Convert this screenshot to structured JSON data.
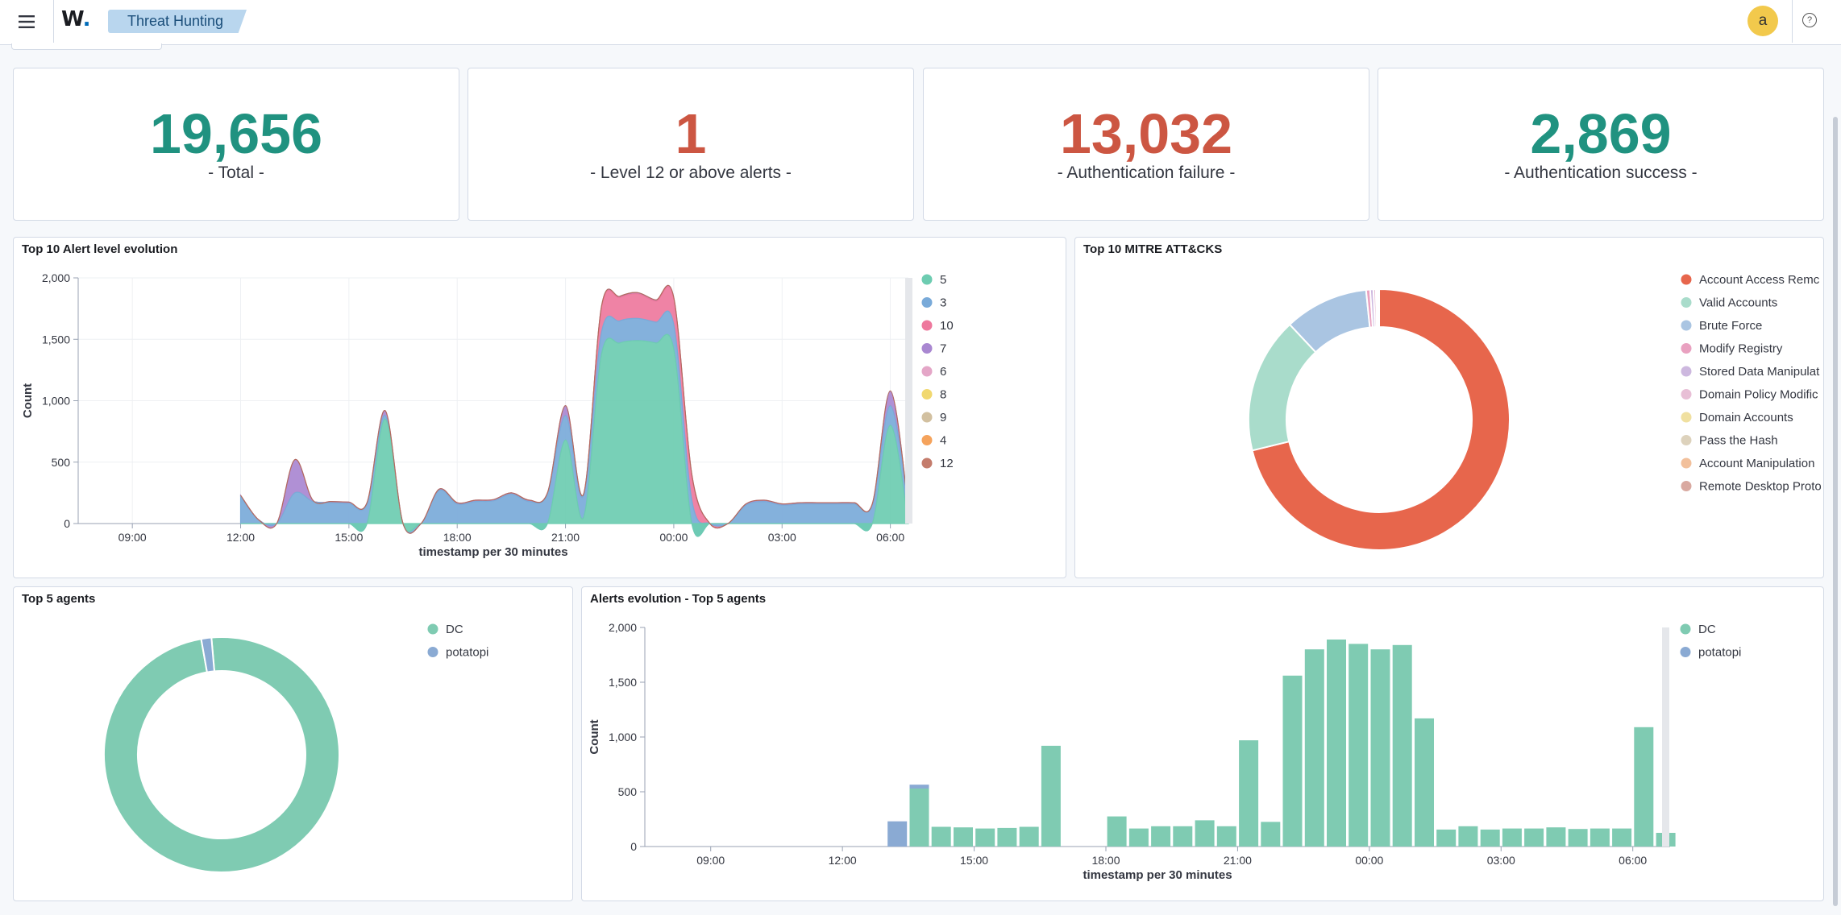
{
  "header": {
    "logo_text": "W",
    "logo_dot": ".",
    "breadcrumb": "Threat Hunting",
    "avatar_initial": "a",
    "help_glyph": "?"
  },
  "metrics": [
    {
      "value": "19,656",
      "label": "- Total -",
      "color": "#209280"
    },
    {
      "value": "1",
      "label": "- Level 12 or above alerts -",
      "color": "#cc5642"
    },
    {
      "value": "13,032",
      "label": "- Authentication failure -",
      "color": "#cc5642"
    },
    {
      "value": "2,869",
      "label": "- Authentication success -",
      "color": "#209280"
    }
  ],
  "panels": {
    "alert_level": "Top 10 Alert level evolution",
    "mitre": "Top 10 MITRE ATT&CKS",
    "agents": "Top 5 agents",
    "agents_evolution": "Alerts evolution - Top 5 agents"
  },
  "chart_data": [
    {
      "type": "area",
      "title": "Top 10 Alert level evolution",
      "xlabel": "timestamp per 30 minutes",
      "ylabel": "Count",
      "ylim": [
        0,
        2000
      ],
      "yticks": [
        "0",
        "500",
        "1,000",
        "1,500",
        "2,000"
      ],
      "xticks": [
        "09:00",
        "12:00",
        "15:00",
        "18:00",
        "21:00",
        "00:00",
        "03:00",
        "06:00"
      ],
      "x": [
        "07:30",
        "08:00",
        "08:30",
        "09:00",
        "09:30",
        "10:00",
        "10:30",
        "11:00",
        "11:30",
        "12:00",
        "12:30",
        "13:00",
        "13:30",
        "14:00",
        "14:30",
        "15:00",
        "15:30",
        "16:00",
        "16:30",
        "17:00",
        "17:30",
        "18:00",
        "18:30",
        "19:00",
        "19:30",
        "20:00",
        "20:30",
        "21:00",
        "21:30",
        "22:00",
        "22:30",
        "23:00",
        "23:30",
        "00:00",
        "00:30",
        "01:00",
        "01:30",
        "02:00",
        "02:30",
        "03:00",
        "03:30",
        "04:00",
        "04:30",
        "05:00",
        "05:30",
        "06:00",
        "06:30"
      ],
      "legend_position": "right",
      "series": [
        {
          "name": "5",
          "color": "#6dccb1",
          "values": [
            0,
            0,
            0,
            0,
            0,
            0,
            0,
            0,
            0,
            0,
            0,
            0,
            0,
            0,
            0,
            0,
            0,
            850,
            0,
            0,
            0,
            0,
            0,
            0,
            0,
            0,
            0,
            680,
            50,
            1380,
            1470,
            1490,
            1470,
            1420,
            0,
            0,
            0,
            0,
            0,
            0,
            0,
            0,
            0,
            0,
            0,
            800,
            0
          ]
        },
        {
          "name": "3",
          "color": "#79aad9",
          "values": [
            0,
            0,
            0,
            0,
            0,
            0,
            0,
            0,
            0,
            220,
            30,
            0,
            250,
            180,
            170,
            165,
            160,
            30,
            0,
            0,
            270,
            160,
            180,
            185,
            240,
            180,
            240,
            200,
            180,
            180,
            180,
            180,
            170,
            200,
            190,
            0,
            0,
            150,
            180,
            150,
            160,
            160,
            160,
            160,
            150,
            160,
            120
          ]
        },
        {
          "name": "10",
          "color": "#ee789d",
          "values": [
            0,
            0,
            0,
            0,
            0,
            0,
            0,
            0,
            0,
            0,
            0,
            0,
            0,
            0,
            0,
            0,
            0,
            0,
            0,
            0,
            0,
            0,
            0,
            0,
            0,
            0,
            0,
            0,
            0,
            200,
            190,
            200,
            170,
            210,
            200,
            0,
            0,
            0,
            0,
            0,
            0,
            0,
            0,
            0,
            0,
            0,
            0
          ]
        },
        {
          "name": "7",
          "color": "#a987d1",
          "values": [
            0,
            0,
            0,
            0,
            0,
            0,
            0,
            0,
            0,
            10,
            0,
            0,
            270,
            10,
            10,
            10,
            10,
            40,
            0,
            0,
            10,
            10,
            10,
            10,
            10,
            10,
            10,
            80,
            10,
            10,
            10,
            10,
            10,
            10,
            10,
            0,
            0,
            10,
            10,
            10,
            10,
            10,
            10,
            10,
            10,
            120,
            10
          ]
        },
        {
          "name": "6",
          "color": "#e4a6c7",
          "values": [
            0,
            0,
            0,
            0,
            0,
            0,
            0,
            0,
            0,
            0,
            0,
            0,
            0,
            0,
            0,
            0,
            0,
            0,
            0,
            0,
            0,
            0,
            0,
            0,
            0,
            0,
            0,
            0,
            0,
            0,
            0,
            0,
            0,
            0,
            0,
            0,
            0,
            0,
            0,
            0,
            0,
            0,
            0,
            0,
            0,
            0,
            0
          ]
        },
        {
          "name": "8",
          "color": "#f1d86f",
          "values": [
            0,
            0,
            0,
            0,
            0,
            0,
            0,
            0,
            0,
            0,
            0,
            0,
            0,
            0,
            0,
            0,
            0,
            0,
            0,
            0,
            0,
            0,
            0,
            0,
            0,
            0,
            0,
            0,
            0,
            0,
            0,
            0,
            0,
            0,
            0,
            0,
            0,
            0,
            0,
            0,
            0,
            0,
            0,
            0,
            0,
            0,
            0
          ]
        },
        {
          "name": "9",
          "color": "#d2c0a0",
          "values": [
            0,
            0,
            0,
            0,
            0,
            0,
            0,
            0,
            0,
            0,
            0,
            0,
            0,
            0,
            0,
            0,
            0,
            0,
            0,
            0,
            0,
            0,
            0,
            0,
            0,
            0,
            0,
            0,
            0,
            0,
            0,
            0,
            0,
            0,
            0,
            0,
            0,
            0,
            0,
            0,
            0,
            0,
            0,
            0,
            0,
            0,
            0
          ]
        },
        {
          "name": "4",
          "color": "#f5a35c",
          "values": [
            0,
            0,
            0,
            0,
            0,
            0,
            0,
            0,
            0,
            0,
            0,
            0,
            0,
            0,
            0,
            0,
            0,
            0,
            0,
            0,
            0,
            0,
            0,
            0,
            0,
            0,
            0,
            0,
            0,
            0,
            0,
            0,
            0,
            0,
            0,
            0,
            0,
            0,
            0,
            0,
            0,
            0,
            0,
            0,
            0,
            0,
            0
          ]
        },
        {
          "name": "12",
          "color": "#c47c6c",
          "values": [
            0,
            0,
            0,
            0,
            0,
            0,
            0,
            0,
            0,
            0,
            0,
            0,
            0,
            0,
            0,
            0,
            0,
            0,
            0,
            0,
            0,
            0,
            0,
            0,
            0,
            0,
            0,
            0,
            0,
            0,
            0,
            0,
            0,
            0,
            0,
            0,
            0,
            0,
            0,
            0,
            0,
            0,
            0,
            0,
            0,
            0,
            0
          ]
        }
      ]
    },
    {
      "type": "pie",
      "title": "Top 10 MITRE ATT&CKS",
      "donut": true,
      "legend_position": "right",
      "labels": [
        "Account Access Remc",
        "Valid Accounts",
        "Brute Force",
        "Modify Registry",
        "Stored Data Manipulat",
        "Domain Policy Modific",
        "Domain Accounts",
        "Pass the Hash",
        "Account Manipulation",
        "Remote Desktop Proto"
      ],
      "values": [
        71.2,
        16.8,
        10.4,
        0.5,
        0.4,
        0.3,
        0.15,
        0.1,
        0.1,
        0.05
      ],
      "colors": [
        "#e7664c",
        "#a9dccb",
        "#aac5e2",
        "#e9a1c0",
        "#cdb8df",
        "#e8bfd6",
        "#f0e0a0",
        "#ddd2bc",
        "#f2c09b",
        "#d9a9a0"
      ]
    },
    {
      "type": "pie",
      "title": "Top 5 agents",
      "donut": true,
      "legend_position": "right",
      "labels": [
        "DC",
        "potatopi"
      ],
      "values": [
        98.6,
        1.4
      ],
      "colors": [
        "#7fcbb2",
        "#8aaad3"
      ]
    },
    {
      "type": "bar",
      "title": "Alerts evolution - Top 5 agents",
      "xlabel": "timestamp per 30 minutes",
      "ylabel": "Count",
      "ylim": [
        0,
        2000
      ],
      "yticks": [
        "0",
        "500",
        "1,000",
        "1,500",
        "2,000"
      ],
      "xticks": [
        "09:00",
        "12:00",
        "15:00",
        "18:00",
        "21:00",
        "00:00",
        "03:00",
        "06:00"
      ],
      "x": [
        "07:30",
        "08:00",
        "08:30",
        "09:00",
        "09:30",
        "10:00",
        "10:30",
        "11:00",
        "11:30",
        "12:00",
        "12:30",
        "13:00",
        "13:30",
        "14:00",
        "14:30",
        "15:00",
        "15:30",
        "16:00",
        "16:30",
        "17:00",
        "17:30",
        "18:00",
        "18:30",
        "19:00",
        "19:30",
        "20:00",
        "20:30",
        "21:00",
        "21:30",
        "22:00",
        "22:30",
        "23:00",
        "23:30",
        "00:00",
        "00:30",
        "01:00",
        "01:30",
        "02:00",
        "02:30",
        "03:00",
        "03:30",
        "04:00",
        "04:30",
        "05:00",
        "05:30",
        "06:00",
        "06:30"
      ],
      "legend_position": "right",
      "series": [
        {
          "name": "DC",
          "color": "#7fcbb2",
          "values": [
            0,
            0,
            0,
            0,
            0,
            0,
            0,
            0,
            0,
            0,
            0,
            0,
            530,
            180,
            175,
            165,
            170,
            180,
            920,
            0,
            0,
            275,
            165,
            185,
            185,
            240,
            185,
            970,
            225,
            1560,
            1800,
            1890,
            1850,
            1800,
            1840,
            1170,
            155,
            185,
            155,
            165,
            165,
            175,
            160,
            165,
            165,
            1090,
            125
          ]
        },
        {
          "name": "potatopi",
          "color": "#8aaad3",
          "values": [
            0,
            0,
            0,
            0,
            0,
            0,
            0,
            0,
            0,
            0,
            0,
            230,
            35,
            0,
            0,
            0,
            0,
            0,
            0,
            0,
            0,
            0,
            0,
            0,
            0,
            0,
            0,
            0,
            0,
            0,
            0,
            0,
            0,
            0,
            0,
            0,
            0,
            0,
            0,
            0,
            0,
            0,
            0,
            0,
            0,
            0,
            0
          ]
        }
      ]
    }
  ]
}
